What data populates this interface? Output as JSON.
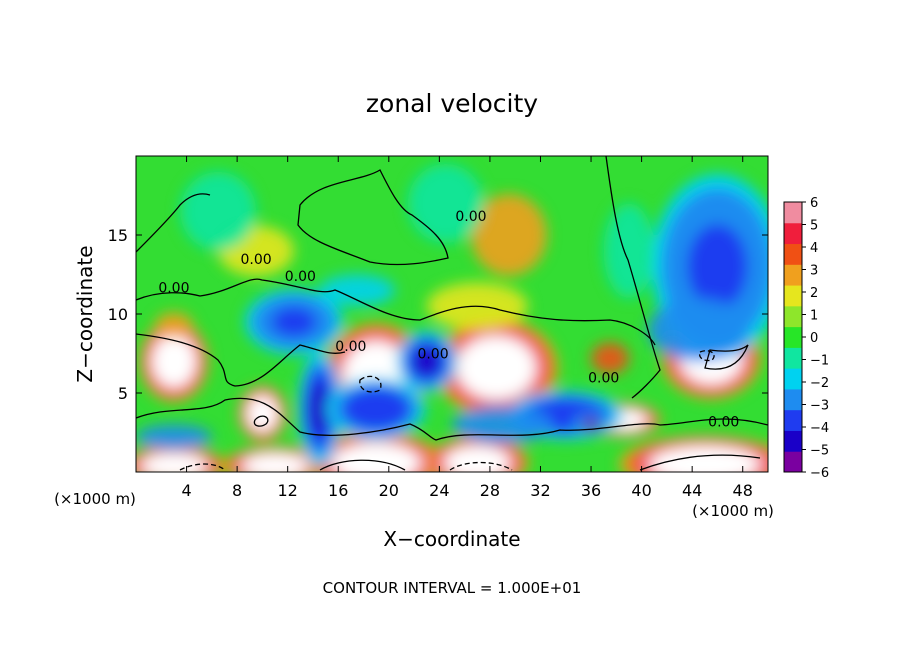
{
  "chart_data": {
    "type": "heatmap",
    "title": "zonal velocity",
    "xlabel": "X−coordinate",
    "ylabel": "Z−coordinate",
    "x_units_left": "(×1000 m)",
    "x_units_right": "(×1000 m)",
    "footer": "CONTOUR INTERVAL = 1.000E+01",
    "xlim": [
      0,
      50
    ],
    "ylim": [
      0,
      20
    ],
    "xticks": [
      4,
      8,
      12,
      16,
      20,
      24,
      28,
      32,
      36,
      40,
      44,
      48
    ],
    "yticks": [
      5,
      10,
      15
    ],
    "colorbar": {
      "min": -6,
      "max": 6,
      "ticks": [
        6,
        5,
        4,
        3,
        2,
        1,
        0,
        -1,
        -2,
        -3,
        -4,
        -5,
        -6
      ],
      "colors": [
        "#7a00a0",
        "#1a00c8",
        "#1f3cf0",
        "#1e8cf0",
        "#00d2f0",
        "#10e6a0",
        "#27e627",
        "#8ee62b",
        "#e6e61e",
        "#f0a01e",
        "#f05014",
        "#f01e3c",
        "#f08ca0"
      ]
    },
    "contour_labels": [
      "0.00",
      "0.00",
      "0.00",
      "0.00",
      "0.00",
      "0.00",
      "0.00",
      "0.00"
    ],
    "features": [
      {
        "x": 3.0,
        "z": 7.0,
        "rx": 2.0,
        "rz": 1.9,
        "v": 9
      },
      {
        "x": 10.0,
        "z": 3.7,
        "rx": 1.4,
        "rz": 1.3,
        "v": 8
      },
      {
        "x": 19.0,
        "z": 6.2,
        "rx": 3.0,
        "rz": 2.4,
        "v": 9
      },
      {
        "x": 28.5,
        "z": 6.6,
        "rx": 3.6,
        "rz": 2.3,
        "v": 9
      },
      {
        "x": 45.5,
        "z": 7.2,
        "rx": 2.9,
        "rz": 1.9,
        "v": 9
      },
      {
        "x": 38.5,
        "z": 3.3,
        "rx": 2.2,
        "rz": 0.8,
        "v": 8
      },
      {
        "x": 3.0,
        "z": 0.4,
        "rx": 3.0,
        "rz": 0.9,
        "v": 9
      },
      {
        "x": 11.0,
        "z": 0.4,
        "rx": 3.0,
        "rz": 0.9,
        "v": 9
      },
      {
        "x": 19.0,
        "z": 0.6,
        "rx": 4.0,
        "rz": 1.4,
        "v": 9
      },
      {
        "x": 27.0,
        "z": 0.6,
        "rx": 3.0,
        "rz": 1.2,
        "v": 9
      },
      {
        "x": 45.0,
        "z": 0.5,
        "rx": 5.0,
        "rz": 1.3,
        "v": 8
      },
      {
        "x": 29.5,
        "z": 15.0,
        "rx": 3.0,
        "rz": 2.6,
        "v": 3
      },
      {
        "x": 9.5,
        "z": 14.0,
        "rx": 3.0,
        "rz": 1.6,
        "v": 2
      },
      {
        "x": 27.0,
        "z": 10.5,
        "rx": 4.0,
        "rz": 1.5,
        "v": 1.5
      },
      {
        "x": 37.5,
        "z": 7.2,
        "rx": 1.5,
        "rz": 1.0,
        "v": 3.5
      },
      {
        "x": 3.0,
        "z": 9.3,
        "rx": 1.5,
        "rz": 0.8,
        "v": 3
      },
      {
        "x": 46.0,
        "z": 13.0,
        "rx": 4.0,
        "rz": 4.5,
        "v": -4
      },
      {
        "x": 44.5,
        "z": 9.0,
        "rx": 4.0,
        "rz": 2.0,
        "v": -3
      },
      {
        "x": 12.5,
        "z": 9.5,
        "rx": 3.0,
        "rz": 1.6,
        "v": -4
      },
      {
        "x": 17.5,
        "z": 11.5,
        "rx": 3.0,
        "rz": 1.0,
        "v": -2.5
      },
      {
        "x": 14.5,
        "z": 4.0,
        "rx": 1.3,
        "rz": 2.8,
        "v": -5
      },
      {
        "x": 23.0,
        "z": 7.0,
        "rx": 1.8,
        "rz": 1.5,
        "v": -5
      },
      {
        "x": 34.0,
        "z": 3.6,
        "rx": 3.5,
        "rz": 1.2,
        "v": -4.5
      },
      {
        "x": 36.0,
        "z": 3.0,
        "rx": 1.0,
        "rz": 0.5,
        "v": -6
      },
      {
        "x": 19.0,
        "z": 4.0,
        "rx": 3.0,
        "rz": 1.5,
        "v": -4.5
      },
      {
        "x": 29.0,
        "z": 3.0,
        "rx": 4.0,
        "rz": 1.2,
        "v": -3.5
      },
      {
        "x": 3.0,
        "z": 2.2,
        "rx": 3.0,
        "rz": 0.8,
        "v": -3.5
      },
      {
        "x": 39.0,
        "z": 14.0,
        "rx": 2.0,
        "rz": 3.0,
        "v": -1.5
      },
      {
        "x": 6.5,
        "z": 16.5,
        "rx": 3.0,
        "rz": 2.5,
        "v": -1.2
      },
      {
        "x": 24.5,
        "z": 17.0,
        "rx": 3.0,
        "rz": 2.5,
        "v": -0.6
      }
    ]
  }
}
